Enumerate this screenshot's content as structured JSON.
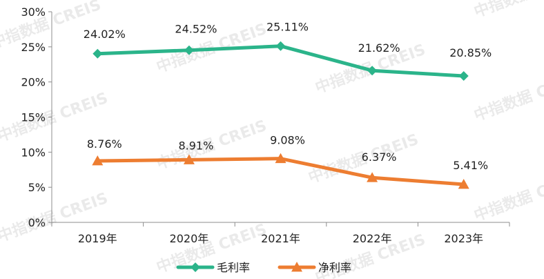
{
  "watermark": "中指数据 CREIS",
  "chart_data": {
    "type": "line",
    "categories": [
      "2019年",
      "2020年",
      "2021年",
      "2022年",
      "2023年"
    ],
    "series": [
      {
        "name": "毛利率",
        "color": "#2bb48a",
        "marker": "diamond",
        "values": [
          24.02,
          24.52,
          25.11,
          21.62,
          20.85
        ],
        "labels": [
          "24.02%",
          "24.52%",
          "25.11%",
          "21.62%",
          "20.85%"
        ]
      },
      {
        "name": "净利率",
        "color": "#ed7d31",
        "marker": "triangle",
        "values": [
          8.76,
          8.91,
          9.08,
          6.37,
          5.41
        ],
        "labels": [
          "8.76%",
          "8.91%",
          "9.08%",
          "6.37%",
          "5.41%"
        ]
      }
    ],
    "ylim": [
      0,
      30
    ],
    "yticks": [
      "0%",
      "5%",
      "10%",
      "15%",
      "20%",
      "25%",
      "30%"
    ],
    "ytick_values": [
      0,
      5,
      10,
      15,
      20,
      25,
      30
    ],
    "grid": false,
    "legend_position": "bottom"
  }
}
